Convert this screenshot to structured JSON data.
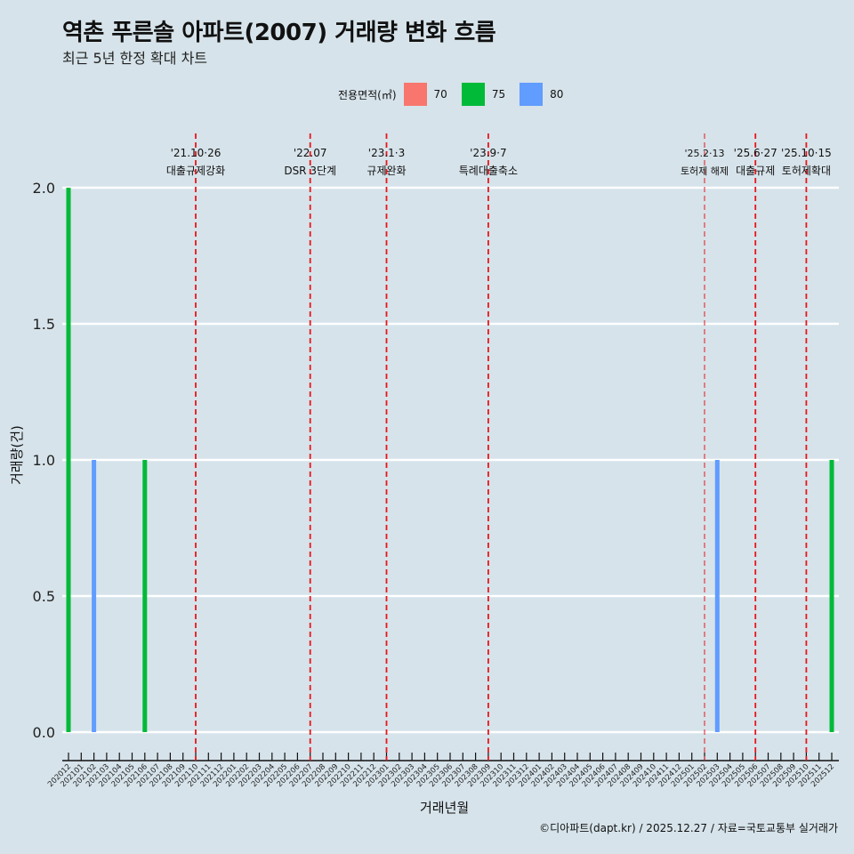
{
  "header": {
    "title": "역촌 푸른솔 아파트(2007) 거래량 변화 흐름",
    "subtitle": "최근 5년 한정 확대 차트"
  },
  "legend": {
    "title": "전용면적(㎡)",
    "items": [
      {
        "label": "70",
        "color": "#f8766d"
      },
      {
        "label": "75",
        "color": "#00ba38"
      },
      {
        "label": "80",
        "color": "#619cff"
      }
    ]
  },
  "footer": "©디아파트(dapt.kr) / 2025.12.27 / 자료=국토교통부 실거래가",
  "chart_data": {
    "type": "bar",
    "title": "역촌 푸른솔 아파트(2007) 거래량 변화 흐름",
    "subtitle": "최근 5년 한정 확대 차트",
    "xlabel": "거래년월",
    "ylabel": "거래량(건)",
    "ylim": [
      0,
      2.0
    ],
    "yticks": [
      0.0,
      0.5,
      1.0,
      1.5,
      2.0
    ],
    "grid": "horizontal",
    "legend_position": "top",
    "categories": [
      "202012",
      "202101",
      "202102",
      "202103",
      "202104",
      "202105",
      "202106",
      "202107",
      "202108",
      "202109",
      "202110",
      "202111",
      "202112",
      "202201",
      "202202",
      "202203",
      "202204",
      "202205",
      "202206",
      "202207",
      "202208",
      "202209",
      "202210",
      "202211",
      "202212",
      "202301",
      "202302",
      "202303",
      "202304",
      "202305",
      "202306",
      "202307",
      "202308",
      "202309",
      "202310",
      "202311",
      "202312",
      "202401",
      "202402",
      "202403",
      "202404",
      "202405",
      "202406",
      "202407",
      "202408",
      "202409",
      "202410",
      "202411",
      "202412",
      "202501",
      "202502",
      "202503",
      "202504",
      "202505",
      "202506",
      "202507",
      "202508",
      "202509",
      "202510",
      "202511",
      "202512"
    ],
    "bars": [
      {
        "month": "202012",
        "series": "75",
        "value": 2
      },
      {
        "month": "202102",
        "series": "80",
        "value": 1
      },
      {
        "month": "202106",
        "series": "75",
        "value": 1
      },
      {
        "month": "202503",
        "series": "80",
        "value": 1
      },
      {
        "month": "202512",
        "series": "75",
        "value": 1
      }
    ],
    "series": [
      {
        "name": "70",
        "color": "#f8766d"
      },
      {
        "name": "75",
        "color": "#00ba38"
      },
      {
        "name": "80",
        "color": "#619cff"
      }
    ],
    "annotations": [
      {
        "month": "202110",
        "date": "'21.10·26",
        "label": "대출규제강화"
      },
      {
        "month": "202207",
        "date": "'22.07",
        "label": "DSR 3단계"
      },
      {
        "month": "202301",
        "date": "'23.1·3",
        "label": "규제완화"
      },
      {
        "month": "202309",
        "date": "'23.9·7",
        "label": "특례대출축소"
      },
      {
        "month": "202502",
        "date": "'25.2·13",
        "label": "토허제 해제",
        "thin": true
      },
      {
        "month": "202506",
        "date": "'25.6·27",
        "label": "대출규제"
      },
      {
        "month": "202510",
        "date": "'25.10·15",
        "label": "토허제확대"
      }
    ]
  }
}
